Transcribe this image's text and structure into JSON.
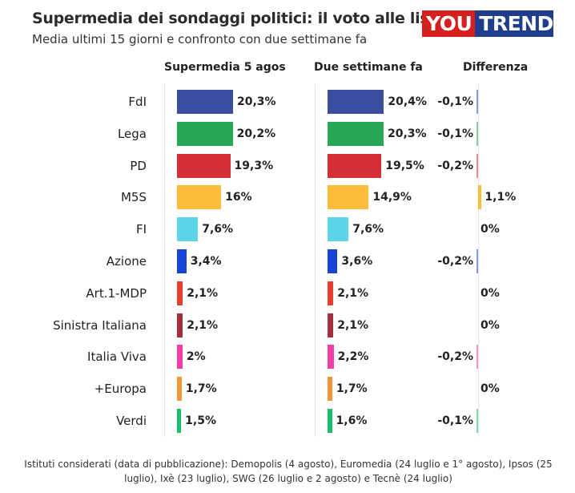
{
  "header": {
    "title": "Supermedia dei sondaggi politici: il voto alle liste",
    "subtitle": "Media ultimi 15 giorni e confronto con due settimane fa",
    "logo_left": "YOU",
    "logo_right": "TREND"
  },
  "columns": {
    "current": "Supermedia 5 agos",
    "previous": "Due settimane fa",
    "difference": "Differenza"
  },
  "footer": "Istituti considerati (data di pubblicazione): Demopolis (4 agosto), Euromedia (24 luglio e 1° agosto), Ipsos (25 luglio), Ixè (23 luglio), SWG (26 luglio e 2 agosto) e Tecnè (24 luglio)",
  "chart_data": {
    "type": "bar",
    "categories": [
      "FdI",
      "Lega",
      "PD",
      "M5S",
      "FI",
      "Azione",
      "Art.1-MDP",
      "Sinistra Italiana",
      "Italia Viva",
      "+Europa",
      "Verdi"
    ],
    "series": [
      {
        "name": "Supermedia 5 agos",
        "values": [
          20.3,
          20.2,
          19.3,
          16,
          7.6,
          3.4,
          2.1,
          2.1,
          2,
          1.7,
          1.5
        ],
        "labels": [
          "20,3%",
          "20,2%",
          "19,3%",
          "16%",
          "7,6%",
          "3,4%",
          "2,1%",
          "2,1%",
          "2%",
          "1,7%",
          "1,5%"
        ]
      },
      {
        "name": "Due settimane fa",
        "values": [
          20.4,
          20.3,
          19.5,
          14.9,
          7.6,
          3.6,
          2.1,
          2.1,
          2.2,
          1.7,
          1.6
        ],
        "labels": [
          "20,4%",
          "20,3%",
          "19,5%",
          "14,9%",
          "7,6%",
          "3,6%",
          "2,1%",
          "2,1%",
          "2,2%",
          "1,7%",
          "1,6%"
        ]
      },
      {
        "name": "Differenza",
        "values": [
          -0.1,
          -0.1,
          -0.2,
          1.1,
          0,
          -0.2,
          0,
          0,
          -0.2,
          0,
          -0.1
        ],
        "labels": [
          "-0,1%",
          "-0,1%",
          "-0,2%",
          "1,1%",
          "0%",
          "-0,2%",
          "0%",
          "0%",
          "-0,2%",
          "0%",
          "-0,1%"
        ]
      }
    ],
    "colors": [
      "#3a4d9e",
      "#27a656",
      "#d42e36",
      "#fbbd3b",
      "#5dd3e8",
      "#1645d6",
      "#e3402f",
      "#a42d3e",
      "#f23ea6",
      "#f79539",
      "#16c06a"
    ],
    "xlim": [
      0,
      21
    ]
  }
}
